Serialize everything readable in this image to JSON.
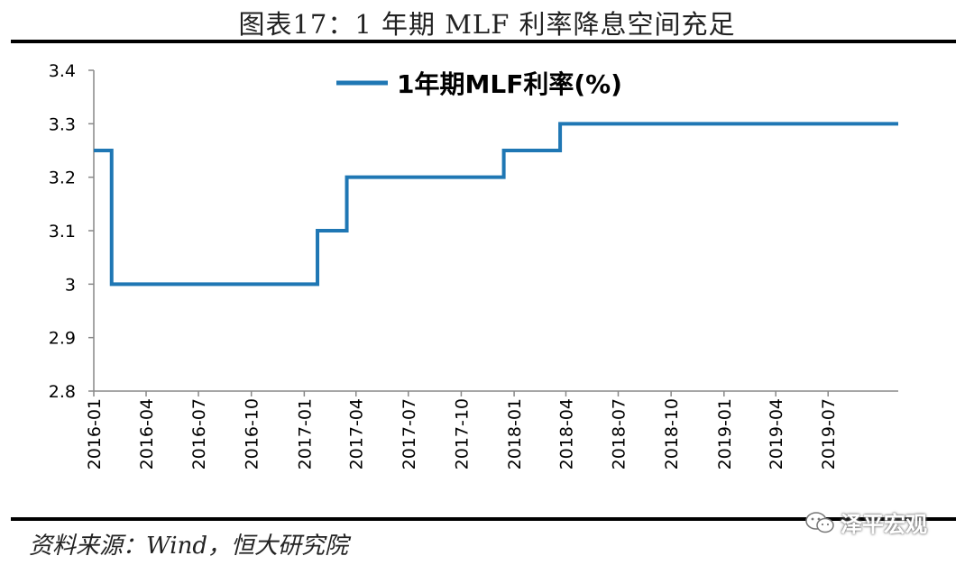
{
  "header": {
    "title": "图表17：1 年期 MLF 利率降息空间充足"
  },
  "footer": {
    "source": "资料来源：Wind，恒大研究院",
    "watermark": "泽平宏观"
  },
  "icons": {
    "watermark_icon": "wechat-icon"
  },
  "colors": {
    "series": "#1f77b4",
    "axis": "#888888",
    "rules": "#000000"
  },
  "chart_data": {
    "type": "line",
    "step": true,
    "title": "",
    "xlabel": "",
    "ylabel": "",
    "ylim": [
      2.8,
      3.4
    ],
    "yticks": [
      "3.4",
      "3.3",
      "3.2",
      "3.1",
      "3",
      "2.9",
      "2.8"
    ],
    "xticks": [
      "2016-01",
      "2016-04",
      "2016-07",
      "2016-10",
      "2017-01",
      "2017-04",
      "2017-07",
      "2017-10",
      "2018-01",
      "2018-04",
      "2018-07",
      "2018-10",
      "2019-01",
      "2019-04",
      "2019-07"
    ],
    "xrange": [
      "2016-01-01",
      "2019-10-31"
    ],
    "grid": false,
    "legend_position": "top",
    "series": [
      {
        "name": "1年期MLF利率(%)",
        "points": [
          {
            "x": "2016-01-01",
            "y": 3.25
          },
          {
            "x": "2016-02-01",
            "y": 3.0
          },
          {
            "x": "2017-01-24",
            "y": 3.1
          },
          {
            "x": "2017-03-16",
            "y": 3.2
          },
          {
            "x": "2017-12-14",
            "y": 3.25
          },
          {
            "x": "2018-03-22",
            "y": 3.3
          },
          {
            "x": "2019-10-31",
            "y": 3.3
          }
        ]
      }
    ]
  }
}
